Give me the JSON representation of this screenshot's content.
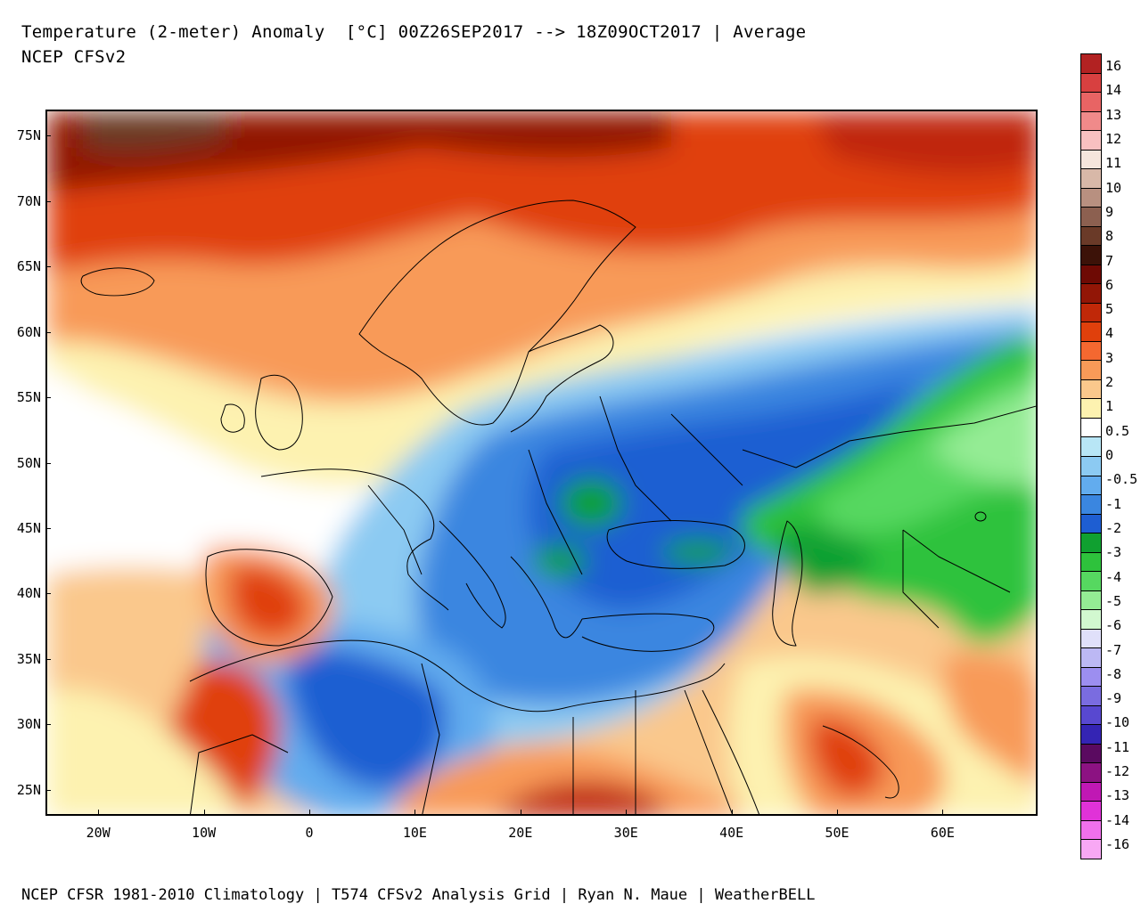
{
  "header": {
    "title_line1": "Temperature (2-meter) Anomaly  [°C] 00Z26SEP2017 --> 18Z09OCT2017 | Average",
    "title_line2": "NCEP CFSv2"
  },
  "footer": {
    "text": "NCEP CFSR 1981-2010 Climatology | T574 CFSv2 Analysis Grid | Ryan N. Maue | WeatherBELL"
  },
  "map": {
    "lat_labels": [
      "75N",
      "70N",
      "65N",
      "60N",
      "55N",
      "50N",
      "45N",
      "40N",
      "35N",
      "30N",
      "25N"
    ],
    "lon_labels": [
      "20W",
      "10W",
      "0",
      "10E",
      "20E",
      "30E",
      "40E",
      "50E",
      "60E"
    ],
    "lat_range": [
      23,
      77
    ],
    "lon_range": [
      -25,
      69
    ]
  },
  "colorbar": {
    "labels": [
      "16",
      "14",
      "13",
      "12",
      "11",
      "10",
      "9",
      "8",
      "7",
      "6",
      "5",
      "4",
      "3",
      "2",
      "1",
      "0.5",
      "0",
      "-0.5",
      "-1",
      "-2",
      "-3",
      "-4",
      "-5",
      "-6",
      "-7",
      "-8",
      "-9",
      "-10",
      "-11",
      "-12",
      "-13",
      "-14",
      "-16"
    ],
    "colors": [
      "#b22222",
      "#d84040",
      "#e86464",
      "#f08a8a",
      "#f8c0c0",
      "#f5e6dc",
      "#d8b8a8",
      "#b89080",
      "#8c6050",
      "#6a3a28",
      "#3c1208",
      "#6e0a04",
      "#921606",
      "#c02808",
      "#e0400c",
      "#f46830",
      "#f89a58",
      "#fac88c",
      "#fdf2b0",
      "#ffffff",
      "#b8e6f6",
      "#8ccaf2",
      "#62acee",
      "#3a86e0",
      "#1e5ed2",
      "#10a030",
      "#2ec23c",
      "#56d860",
      "#94ec94",
      "#d2f8d0",
      "#e0e0fa",
      "#bcb8f4",
      "#9c8ef0",
      "#7a6ce0",
      "#5848d0",
      "#3424b4",
      "#5a0a60",
      "#8c1282",
      "#c018b4",
      "#e032d8",
      "#f070ec",
      "#f8a8f4"
    ]
  }
}
